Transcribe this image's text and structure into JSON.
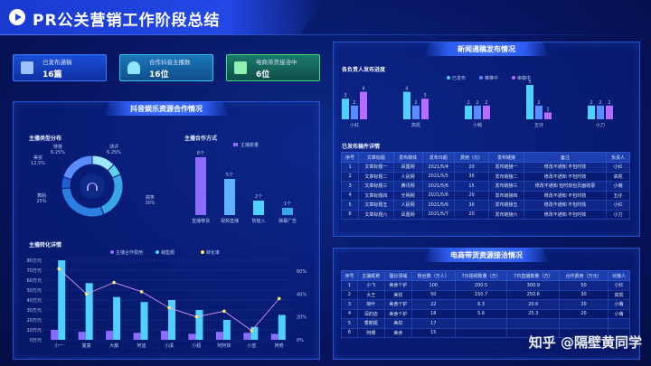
{
  "header": {
    "title": "PR公关营销工作阶段总结"
  },
  "stats": [
    {
      "label": "已发布通稿",
      "value": "16篇",
      "color": "#3a7bff"
    },
    {
      "label": "合作抖音主播数",
      "value": "16位",
      "color": "#34c1e6"
    },
    {
      "label": "电商带货接洽中",
      "value": "6位",
      "color": "#3fdc7a"
    }
  ],
  "douyin": {
    "head": "抖音娱乐资源合作情况",
    "type_title": "主播类型分布",
    "pie": [
      {
        "name": "美妆",
        "pct": "12.5%",
        "value": 12.5,
        "color": "#9be7ff"
      },
      {
        "name": "穿搭",
        "pct": "6.25%",
        "value": 6.25,
        "color": "#5fd0f0"
      },
      {
        "name": "舞蹈",
        "pct": "25%",
        "value": 25,
        "color": "#3aa6e8"
      },
      {
        "name": "搞笑",
        "pct": "30%",
        "value": 30,
        "color": "#2a7fe0"
      },
      {
        "name": "测评",
        "pct": "6.25%",
        "value": 6.25,
        "color": "#1f5fd0"
      },
      {
        "name": "其他",
        "pct": "",
        "value": 20,
        "color": "#5a8cff"
      }
    ],
    "pie_labels": [
      {
        "text": "美妆\n12.5%"
      },
      {
        "text": "穿搭\n6.25%"
      },
      {
        "text": "测评\n6.25%"
      },
      {
        "text": "舞蹈\n25%"
      },
      {
        "text": "搞笑\n30%"
      }
    ],
    "coop_title": "主播合作方式",
    "coop_legend": "主播数量",
    "coop": [
      {
        "name": "直播带货",
        "value": 8,
        "label": "8个"
      },
      {
        "name": "视频直播",
        "value": 5,
        "label": "5个"
      },
      {
        "name": "软植入",
        "value": 2,
        "label": "2个"
      },
      {
        "name": "弹幕广告",
        "value": 1,
        "label": "1个"
      }
    ],
    "conv_title": "主播转化详情",
    "conv_legend": [
      "主播合作费用",
      "销售额",
      "转化率"
    ],
    "conv_yaxis": [
      "80万元",
      "70万元",
      "60万元",
      "50万元",
      "40万元",
      "30万元",
      "20万元",
      "10万元",
      "0万元"
    ],
    "conv_y2axis": [
      "60%",
      "40%",
      "20%",
      "0%"
    ],
    "conv": [
      {
        "name": "小一",
        "fee": 10,
        "sales": 80,
        "rate": 62
      },
      {
        "name": "童童",
        "fee": 8,
        "sales": 57,
        "rate": 40
      },
      {
        "name": "大藤",
        "fee": 9,
        "sales": 43,
        "rate": 50
      },
      {
        "name": "阿迪",
        "fee": 7,
        "sales": 38,
        "rate": 42
      },
      {
        "name": "小溪",
        "fee": 9,
        "sales": 40,
        "rate": 28
      },
      {
        "name": "小超",
        "fee": 6,
        "sales": 30,
        "rate": 20
      },
      {
        "name": "阿阿妹",
        "fee": 8,
        "sales": 20,
        "rate": 25
      },
      {
        "name": "小蓝",
        "fee": 7,
        "sales": 13,
        "rate": 8
      },
      {
        "name": "阿奇",
        "fee": 6,
        "sales": 25,
        "rate": 36
      }
    ]
  },
  "news": {
    "head": "新闻通稿发布情况",
    "prog_title": "各负责人发布进度",
    "prog_legend": [
      "已发布",
      "推推中",
      "审稿中"
    ],
    "prog": [
      {
        "name": "小红",
        "a": 3,
        "b": 2,
        "c": 4
      },
      {
        "name": "高凯",
        "a": 4,
        "b": 2,
        "c": 3
      },
      {
        "name": "小萌",
        "a": 2,
        "b": 2,
        "c": 2
      },
      {
        "name": "五仔",
        "a": 5,
        "b": 2,
        "c": 1
      },
      {
        "name": "小刀",
        "a": 2,
        "b": 2,
        "c": 2
      }
    ],
    "detail_title": "已发布稿件详情",
    "cols": [
      "序号",
      "文章标题",
      "发布媒体",
      "发布日期",
      "费用（元）",
      "发布链接",
      "备注",
      "负责人"
    ],
    "rows": [
      [
        "1",
        "文章标题一",
        "凤凰网",
        "2021/5/4",
        "20",
        "发布链接一",
        "修改不通知 不包时效",
        "小红"
      ],
      [
        "2",
        "文章标题二",
        "人民网",
        "2021/5/5",
        "30",
        "发布链接二",
        "修改不通知 不包时效",
        "高凯"
      ],
      [
        "3",
        "文章标题三",
        "腾讯网",
        "2021/5/6",
        "15",
        "发布链接三",
        "修改不通知 包时效包页面收录",
        "小萌"
      ],
      [
        "4",
        "文章标题四",
        "光明网",
        "2021/5/6",
        "20",
        "发布链接四",
        "修改不通知 不包时效",
        "五仔"
      ],
      [
        "5",
        "文章标题五",
        "人民网",
        "2021/5/6",
        "30",
        "发布链接五",
        "修改不通知 不包时效",
        "小红"
      ],
      [
        "6",
        "文章标题六",
        "凤凰网",
        "2021/5/7",
        "20",
        "发布链接六",
        "修改不通知 不包时效",
        "小刀"
      ]
    ]
  },
  "ecom": {
    "head": "电商带货资源接洽情况",
    "cols": [
      "序号",
      "主播昵称",
      "擅长领域",
      "粉丝数（万人）",
      "7日视频数量（万）",
      "7日直播数量（万）",
      "合作费用（万元）",
      "对接人"
    ],
    "rows": [
      [
        "1",
        "小飞",
        "美食个护",
        "100",
        "200.5",
        "300.9",
        "50",
        "小红"
      ],
      [
        "2",
        "大王",
        "美妆",
        "50",
        "150.7",
        "250.6",
        "30",
        "高凯"
      ],
      [
        "3",
        "荷叶",
        "美食个护",
        "22",
        "6.3",
        "20.6",
        "20",
        "小萌"
      ],
      [
        "4",
        "深的店",
        "美食个护",
        "18",
        "5.6",
        "25.3",
        "20",
        "小萌"
      ],
      [
        "5",
        "香榭姬",
        "美妆",
        "17",
        "",
        "",
        "",
        ""
      ],
      [
        "6",
        "阿卿",
        "美食",
        "15",
        "",
        "",
        "",
        ""
      ]
    ]
  },
  "watermark": "知乎 @隔壁黄同学"
}
